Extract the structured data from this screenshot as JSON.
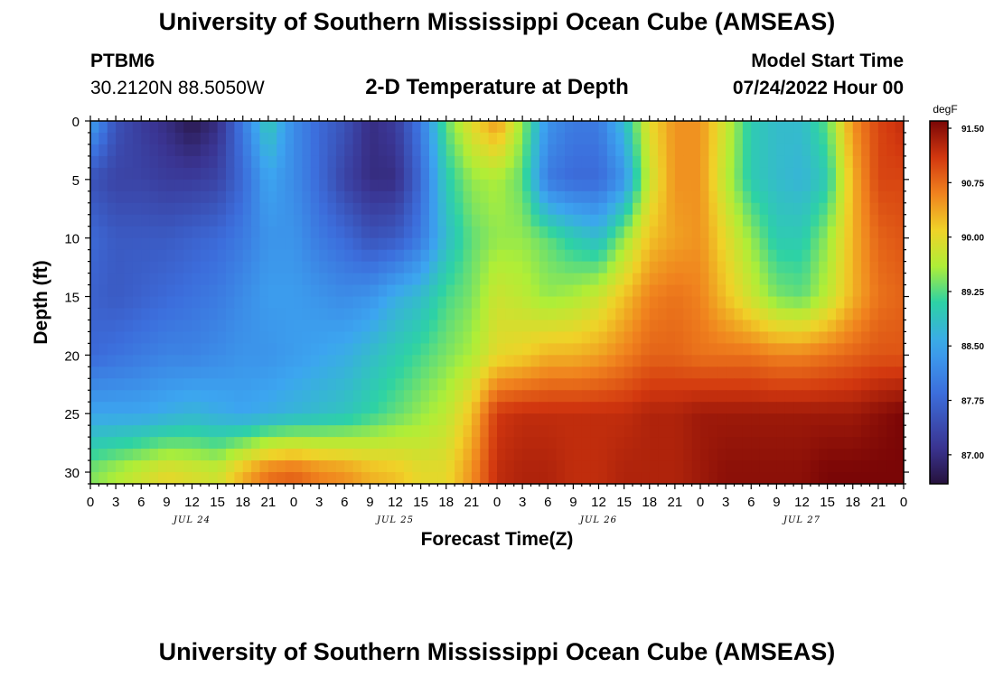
{
  "header": {
    "title": "University of Southern Mississippi Ocean Cube (AMSEAS)",
    "station": "PTBM6",
    "coords": "30.2120N  88.5050W",
    "subtitle": "2-D Temperature at Depth",
    "start_label": "Model Start Time",
    "start_value": "07/24/2022 Hour 00"
  },
  "footer": {
    "title": "University of Southern Mississippi Ocean Cube (AMSEAS)"
  },
  "chart_data": {
    "type": "heatmap",
    "title": "2-D Temperature at Depth",
    "xlabel": "Forecast Time(Z)",
    "ylabel": "Depth (ft)",
    "x_unit": "forecast hour",
    "xlim": [
      0,
      96
    ],
    "ylim": [
      31,
      0
    ],
    "x_ticks": [
      0,
      3,
      6,
      9,
      12,
      15,
      18,
      21,
      24,
      27,
      30,
      33,
      36,
      39,
      42,
      45,
      48,
      51,
      54,
      57,
      60,
      63,
      66,
      69,
      72,
      75,
      78,
      81,
      84,
      87,
      90,
      93,
      96
    ],
    "x_tick_labels": [
      "0",
      "3",
      "6",
      "9",
      "12",
      "15",
      "18",
      "21",
      "0",
      "3",
      "6",
      "9",
      "12",
      "15",
      "18",
      "21",
      "0",
      "3",
      "6",
      "9",
      "12",
      "15",
      "18",
      "21",
      "0",
      "3",
      "6",
      "9",
      "12",
      "15",
      "18",
      "21",
      "0"
    ],
    "day_labels": [
      {
        "label": "JUL 24",
        "x": 12
      },
      {
        "label": "JUL 25",
        "x": 36
      },
      {
        "label": "JUL 26",
        "x": 60
      },
      {
        "label": "JUL 27",
        "x": 84
      }
    ],
    "y_ticks": [
      0,
      5,
      10,
      15,
      20,
      25,
      30
    ],
    "y_tick_labels": [
      "0",
      "5",
      "10",
      "15",
      "20",
      "25",
      "30"
    ],
    "colorbar": {
      "unit": "degF",
      "min": 86.6,
      "max": 91.6,
      "tick_values": [
        91.5,
        90.75,
        90.0,
        89.25,
        88.5,
        87.75,
        87.0
      ],
      "tick_labels": [
        "91.50",
        "90.75",
        "90.00",
        "89.25",
        "88.50",
        "87.75",
        "87.00"
      ]
    },
    "x_nodes": [
      0,
      3,
      6,
      9,
      12,
      15,
      18,
      21,
      24,
      27,
      30,
      33,
      36,
      39,
      42,
      45,
      48,
      51,
      54,
      57,
      60,
      63,
      66,
      69,
      72,
      75,
      78,
      81,
      84,
      87,
      90,
      93,
      96
    ],
    "y_nodes": [
      0,
      5,
      10,
      15,
      20,
      25,
      30
    ],
    "temperature": [
      [
        88.5,
        87.5,
        87.2,
        87.0,
        86.7,
        87.0,
        88.0,
        89.0,
        88.2,
        87.8,
        87.5,
        87.0,
        87.2,
        88.0,
        89.3,
        90.0,
        90.5,
        89.5,
        88.3,
        88.0,
        88.0,
        88.8,
        90.0,
        90.5,
        90.5,
        89.8,
        89.0,
        88.8,
        88.8,
        89.3,
        90.5,
        91.0,
        91.2
      ],
      [
        87.5,
        87.3,
        87.3,
        87.2,
        87.2,
        87.3,
        87.8,
        88.5,
        88.2,
        87.8,
        87.3,
        87.0,
        87.0,
        87.8,
        89.0,
        89.5,
        89.6,
        89.3,
        88.0,
        87.8,
        87.8,
        88.3,
        89.8,
        90.5,
        90.5,
        89.7,
        89.0,
        88.8,
        88.7,
        89.0,
        90.3,
        91.0,
        91.0
      ],
      [
        87.8,
        87.6,
        87.6,
        87.6,
        87.7,
        87.8,
        88.0,
        88.3,
        88.3,
        88.0,
        87.8,
        87.5,
        87.6,
        88.0,
        88.8,
        89.3,
        89.5,
        89.5,
        89.3,
        89.0,
        88.8,
        89.5,
        90.2,
        90.4,
        90.5,
        90.0,
        89.5,
        89.0,
        89.0,
        89.5,
        90.3,
        90.8,
        90.9
      ],
      [
        87.7,
        87.6,
        87.7,
        87.8,
        87.9,
        88.0,
        88.2,
        88.4,
        88.4,
        88.3,
        88.2,
        88.3,
        88.6,
        88.8,
        89.2,
        89.4,
        89.8,
        89.7,
        89.5,
        89.6,
        89.8,
        90.2,
        90.6,
        90.7,
        90.6,
        90.2,
        89.8,
        89.4,
        89.3,
        89.7,
        90.3,
        90.7,
        90.8
      ],
      [
        87.8,
        87.9,
        88.0,
        88.1,
        88.1,
        88.2,
        88.3,
        88.3,
        88.4,
        88.5,
        88.6,
        88.8,
        89.0,
        89.2,
        89.4,
        89.6,
        90.0,
        90.1,
        90.3,
        90.3,
        90.4,
        90.6,
        90.8,
        90.8,
        90.7,
        90.7,
        90.7,
        90.6,
        90.6,
        90.7,
        90.8,
        90.9,
        90.9
      ],
      [
        88.5,
        88.5,
        88.5,
        88.6,
        88.7,
        88.6,
        88.5,
        88.6,
        88.7,
        88.8,
        88.9,
        89.1,
        89.3,
        89.5,
        89.7,
        90.2,
        91.1,
        91.2,
        91.2,
        91.2,
        91.2,
        91.2,
        91.3,
        91.3,
        91.4,
        91.4,
        91.4,
        91.4,
        91.4,
        91.4,
        91.4,
        91.5,
        91.6
      ],
      [
        89.4,
        89.6,
        89.8,
        90.0,
        89.9,
        89.8,
        90.3,
        90.7,
        90.8,
        90.6,
        90.5,
        90.3,
        90.2,
        90.0,
        90.0,
        90.5,
        91.2,
        91.3,
        91.3,
        91.2,
        91.2,
        91.3,
        91.3,
        91.3,
        91.4,
        91.5,
        91.5,
        91.5,
        91.5,
        91.6,
        91.6,
        91.6,
        91.6
      ]
    ]
  }
}
